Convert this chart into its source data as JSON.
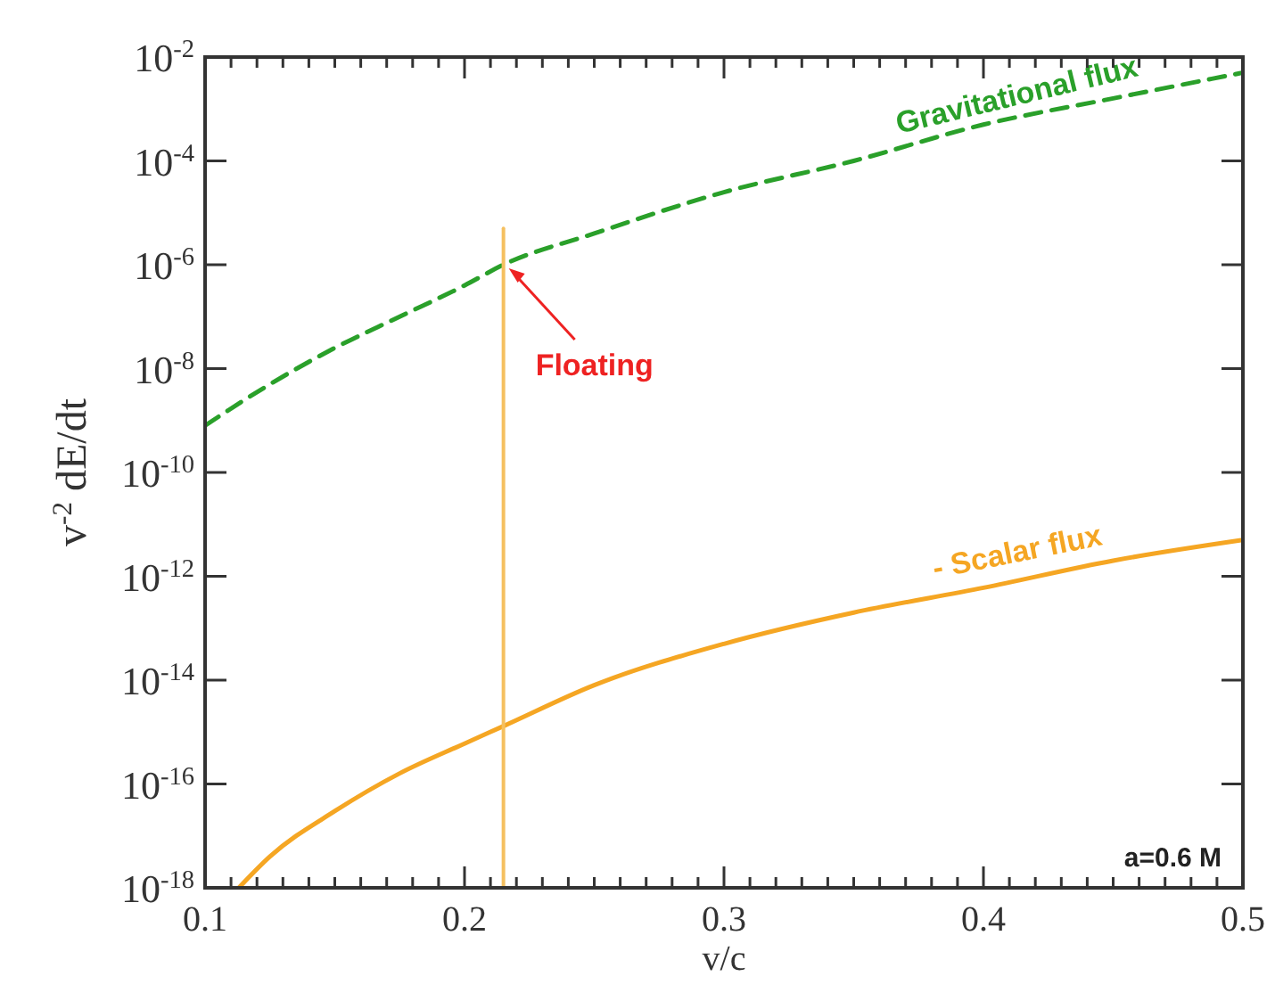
{
  "chart_data": {
    "type": "line",
    "xlabel": "v/c",
    "ylabel": "v$^{-2}$ dE/dt",
    "log": "y",
    "marker": "none",
    "xlim": [
      0.1,
      0.5
    ],
    "xticks": [
      0.1,
      {
        "value": 0.11,
        "label": null
      },
      {
        "value": 0.12,
        "label": null
      },
      {
        "value": 0.13,
        "label": null
      },
      {
        "value": 0.14,
        "label": null
      },
      {
        "value": 0.15,
        "label": null
      },
      {
        "value": 0.16,
        "label": null
      },
      {
        "value": 0.17,
        "label": null
      },
      {
        "value": 0.18,
        "label": null
      },
      {
        "value": 0.19,
        "label": null
      },
      0.2,
      {
        "value": 0.21,
        "label": null
      },
      {
        "value": 0.22,
        "label": null
      },
      {
        "value": 0.23,
        "label": null
      },
      {
        "value": 0.24,
        "label": null
      },
      {
        "value": 0.25,
        "label": null
      },
      {
        "value": 0.26,
        "label": null
      },
      {
        "value": 0.27,
        "label": null
      },
      {
        "value": 0.28,
        "label": null
      },
      {
        "value": 0.29,
        "label": null
      },
      0.3,
      {
        "value": 0.31,
        "label": null
      },
      {
        "value": 0.32,
        "label": null
      },
      {
        "value": 0.33,
        "label": null
      },
      {
        "value": 0.34,
        "label": null
      },
      {
        "value": 0.35,
        "label": null
      },
      {
        "value": 0.36,
        "label": null
      },
      {
        "value": 0.37,
        "label": null
      },
      {
        "value": 0.38,
        "label": null
      },
      {
        "value": 0.39,
        "label": null
      },
      0.4,
      {
        "value": 0.41,
        "label": null
      },
      {
        "value": 0.42,
        "label": null
      },
      {
        "value": 0.43,
        "label": null
      },
      {
        "value": 0.44,
        "label": null
      },
      {
        "value": 0.45,
        "label": null
      },
      {
        "value": 0.46,
        "label": null
      },
      {
        "value": 0.47,
        "label": null
      },
      {
        "value": 0.48,
        "label": null
      },
      {
        "value": 0.49,
        "label": null
      },
      0.5
    ],
    "ylim": [
      1e-18,
      0.01
    ],
    "yticks": [
      {
        "value": 1e-18,
        "label": "10$^{-18}$"
      },
      {
        "value": 1e-16,
        "label": "10$^{-16}$"
      },
      {
        "value": 1e-14,
        "label": "10$^{-14}$"
      },
      {
        "value": 1e-12,
        "label": "10$^{-12}$"
      },
      {
        "value": 1e-10,
        "label": "10$^{-10}$"
      },
      {
        "value": 1e-08,
        "label": "10$^{-8}$"
      },
      {
        "value": 1e-06,
        "label": "10$^{-6}$"
      },
      {
        "value": 0.0001,
        "label": "10$^{-4}$"
      },
      {
        "value": 0.01,
        "label": "10$^{-2}$"
      }
    ],
    "series": [
      {
        "name": "Gravitational flux",
        "color": "#2aa02a",
        "line_style": "dashed",
        "x": [
          0.1,
          0.125,
          0.15,
          0.175,
          0.2,
          0.215,
          0.25,
          0.3,
          0.35,
          0.4,
          0.45,
          0.5
        ],
        "values": [
          8e-10,
          5e-09,
          2.5e-08,
          1e-07,
          4e-07,
          1e-06,
          4e-06,
          2.5e-05,
          0.0001,
          0.0005,
          0.0016,
          0.005
        ]
      },
      {
        "name": "- Scalar flux",
        "color": "#f5a623",
        "line_style": "solid",
        "x": [
          0.113,
          0.125,
          0.15,
          0.175,
          0.2,
          0.215,
          0.25,
          0.3,
          0.35,
          0.4,
          0.45,
          0.5
        ],
        "values": [
          1e-18,
          4e-18,
          3e-17,
          1.6e-16,
          6e-16,
          1.3e-15,
          8e-15,
          5e-14,
          2e-13,
          6e-13,
          2e-12,
          5e-12
        ]
      },
      {
        "color": "#f5c060",
        "line_style": "solid",
        "x": [
          0.215,
          0.215
        ],
        "values": [
          5e-06,
          1e-18
        ]
      }
    ],
    "annotations": [
      {
        "text": "Floating",
        "x": 0.215,
        "y": 1e-06
      },
      "a=0.6 M"
    ]
  }
}
